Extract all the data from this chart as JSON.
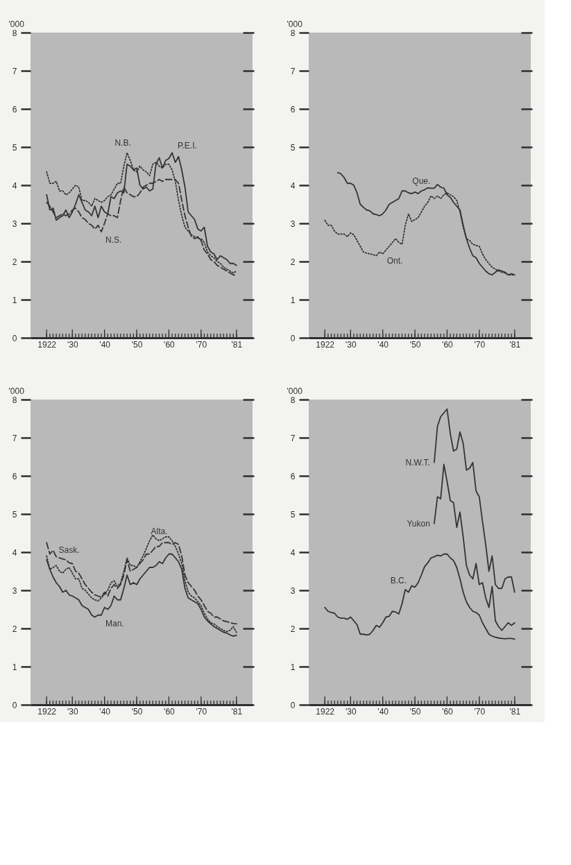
{
  "chart_data": [
    {
      "type": "line",
      "ylabel": "'000",
      "xlim": [
        1917,
        1986
      ],
      "ylim": [
        0,
        8
      ],
      "yticks": [
        0,
        1,
        2,
        3,
        4,
        5,
        6,
        7,
        8
      ],
      "xticks": [
        {
          "value": 1922,
          "label": "1922"
        },
        {
          "value": 1923,
          "label": null
        },
        {
          "value": 1924,
          "label": null
        },
        {
          "value": 1925,
          "label": null
        },
        {
          "value": 1926,
          "label": null
        },
        {
          "value": 1927,
          "label": null
        },
        {
          "value": 1928,
          "label": null
        },
        {
          "value": 1929,
          "label": null
        },
        {
          "value": 1930,
          "label": "'30"
        },
        {
          "value": 1931,
          "label": null
        },
        {
          "value": 1932,
          "label": null
        },
        {
          "value": 1933,
          "label": null
        },
        {
          "value": 1934,
          "label": null
        },
        {
          "value": 1935,
          "label": null
        },
        {
          "value": 1936,
          "label": null
        },
        {
          "value": 1937,
          "label": null
        },
        {
          "value": 1938,
          "label": null
        },
        {
          "value": 1939,
          "label": null
        },
        {
          "value": 1940,
          "label": "'40"
        },
        {
          "value": 1941,
          "label": null
        },
        {
          "value": 1942,
          "label": null
        },
        {
          "value": 1943,
          "label": null
        },
        {
          "value": 1944,
          "label": null
        },
        {
          "value": 1945,
          "label": null
        },
        {
          "value": 1946,
          "label": null
        },
        {
          "value": 1947,
          "label": null
        },
        {
          "value": 1948,
          "label": null
        },
        {
          "value": 1949,
          "label": null
        },
        {
          "value": 1950,
          "label": "'50"
        },
        {
          "value": 1951,
          "label": null
        },
        {
          "value": 1952,
          "label": null
        },
        {
          "value": 1953,
          "label": null
        },
        {
          "value": 1954,
          "label": null
        },
        {
          "value": 1955,
          "label": null
        },
        {
          "value": 1956,
          "label": null
        },
        {
          "value": 1957,
          "label": null
        },
        {
          "value": 1958,
          "label": null
        },
        {
          "value": 1959,
          "label": null
        },
        {
          "value": 1960,
          "label": "'60"
        },
        {
          "value": 1961,
          "label": null
        },
        {
          "value": 1962,
          "label": null
        },
        {
          "value": 1963,
          "label": null
        },
        {
          "value": 1964,
          "label": null
        },
        {
          "value": 1965,
          "label": null
        },
        {
          "value": 1966,
          "label": null
        },
        {
          "value": 1967,
          "label": null
        },
        {
          "value": 1968,
          "label": null
        },
        {
          "value": 1969,
          "label": null
        },
        {
          "value": 1970,
          "label": "'70"
        },
        {
          "value": 1971,
          "label": null
        },
        {
          "value": 1972,
          "label": null
        },
        {
          "value": 1973,
          "label": null
        },
        {
          "value": 1974,
          "label": null
        },
        {
          "value": 1975,
          "label": null
        },
        {
          "value": 1976,
          "label": null
        },
        {
          "value": 1977,
          "label": null
        },
        {
          "value": 1978,
          "label": null
        },
        {
          "value": 1979,
          "label": null
        },
        {
          "value": 1980,
          "label": null
        },
        {
          "value": 1981,
          "label": "'81"
        }
      ],
      "x": [
        1922,
        1923,
        1924,
        1925,
        1926,
        1927,
        1928,
        1929,
        1930,
        1931,
        1932,
        1933,
        1934,
        1935,
        1936,
        1937,
        1938,
        1939,
        1940,
        1941,
        1942,
        1943,
        1944,
        1945,
        1946,
        1947,
        1948,
        1949,
        1950,
        1951,
        1952,
        1953,
        1954,
        1955,
        1956,
        1957,
        1958,
        1959,
        1960,
        1961,
        1962,
        1963,
        1964,
        1965,
        1966,
        1967,
        1968,
        1969,
        1970,
        1971,
        1972,
        1973,
        1974,
        1975,
        1976,
        1977,
        1978,
        1979,
        1980,
        1981
      ],
      "series": [
        {
          "name": "P.E.I.",
          "color": "#333333",
          "line_style": "solid",
          "values": [
            3.75,
            3.35,
            3.4,
            3.08,
            3.15,
            3.2,
            3.35,
            3.15,
            3.3,
            3.5,
            3.75,
            3.55,
            3.35,
            3.3,
            3.2,
            3.45,
            3.15,
            3.45,
            3.3,
            3.25,
            3.7,
            3.65,
            3.8,
            3.85,
            3.8,
            4.55,
            4.5,
            4.4,
            4.45,
            4.0,
            3.9,
            3.95,
            3.85,
            3.9,
            4.55,
            4.72,
            4.45,
            4.65,
            4.7,
            4.85,
            4.6,
            4.75,
            4.4,
            3.95,
            3.3,
            3.2,
            3.1,
            2.85,
            2.8,
            2.9,
            2.4,
            2.25,
            2.2,
            2.05,
            2.15,
            2.1,
            2.05,
            1.95,
            1.95,
            1.9
          ]
        },
        {
          "name": "N.B.",
          "color": "#333333",
          "line_style": "dotted",
          "values": [
            4.35,
            4.05,
            4.05,
            4.1,
            3.85,
            3.85,
            3.75,
            3.8,
            3.9,
            4.0,
            3.95,
            3.6,
            3.6,
            3.55,
            3.45,
            3.65,
            3.6,
            3.55,
            3.6,
            3.7,
            3.75,
            3.9,
            4.05,
            4.05,
            4.5,
            4.85,
            4.65,
            4.4,
            4.35,
            4.5,
            4.4,
            4.35,
            4.25,
            4.55,
            4.6,
            4.5,
            4.45,
            4.55,
            4.55,
            4.4,
            4.1,
            3.6,
            3.2,
            2.9,
            2.8,
            2.7,
            2.65,
            2.6,
            2.6,
            2.5,
            2.25,
            2.15,
            2.1,
            2.0,
            1.95,
            1.85,
            1.8,
            1.75,
            1.7,
            1.75
          ]
        },
        {
          "name": "N.S.",
          "color": "#333333",
          "line_style": "dashed",
          "values": [
            3.55,
            3.45,
            3.3,
            3.15,
            3.2,
            3.25,
            3.2,
            3.25,
            3.35,
            3.4,
            3.3,
            3.15,
            3.1,
            3.0,
            2.95,
            2.85,
            2.95,
            2.78,
            3.0,
            3.25,
            3.2,
            3.2,
            3.15,
            3.6,
            3.95,
            3.8,
            3.75,
            3.7,
            3.7,
            3.8,
            3.95,
            4.0,
            4.05,
            4.05,
            4.1,
            4.15,
            4.1,
            4.15,
            4.15,
            4.15,
            4.15,
            4.05,
            3.6,
            3.2,
            2.9,
            2.65,
            2.6,
            2.65,
            2.55,
            2.3,
            2.2,
            2.05,
            2.0,
            1.9,
            1.85,
            1.8,
            1.75,
            1.7,
            1.65,
            1.65
          ]
        }
      ]
    },
    {
      "type": "line",
      "ylabel": "'000",
      "xlim": [
        1917,
        1986
      ],
      "ylim": [
        0,
        8
      ],
      "yticks": [
        0,
        1,
        2,
        3,
        4,
        5,
        6,
        7,
        8
      ],
      "xticks": [
        {
          "value": 1922,
          "label": "1922"
        },
        {
          "value": 1923,
          "label": null
        },
        {
          "value": 1924,
          "label": null
        },
        {
          "value": 1925,
          "label": null
        },
        {
          "value": 1926,
          "label": null
        },
        {
          "value": 1927,
          "label": null
        },
        {
          "value": 1928,
          "label": null
        },
        {
          "value": 1929,
          "label": null
        },
        {
          "value": 1930,
          "label": "'30"
        },
        {
          "value": 1931,
          "label": null
        },
        {
          "value": 1932,
          "label": null
        },
        {
          "value": 1933,
          "label": null
        },
        {
          "value": 1934,
          "label": null
        },
        {
          "value": 1935,
          "label": null
        },
        {
          "value": 1936,
          "label": null
        },
        {
          "value": 1937,
          "label": null
        },
        {
          "value": 1938,
          "label": null
        },
        {
          "value": 1939,
          "label": null
        },
        {
          "value": 1940,
          "label": "'40"
        },
        {
          "value": 1941,
          "label": null
        },
        {
          "value": 1942,
          "label": null
        },
        {
          "value": 1943,
          "label": null
        },
        {
          "value": 1944,
          "label": null
        },
        {
          "value": 1945,
          "label": null
        },
        {
          "value": 1946,
          "label": null
        },
        {
          "value": 1947,
          "label": null
        },
        {
          "value": 1948,
          "label": null
        },
        {
          "value": 1949,
          "label": null
        },
        {
          "value": 1950,
          "label": "'50"
        },
        {
          "value": 1951,
          "label": null
        },
        {
          "value": 1952,
          "label": null
        },
        {
          "value": 1953,
          "label": null
        },
        {
          "value": 1954,
          "label": null
        },
        {
          "value": 1955,
          "label": null
        },
        {
          "value": 1956,
          "label": null
        },
        {
          "value": 1957,
          "label": null
        },
        {
          "value": 1958,
          "label": null
        },
        {
          "value": 1959,
          "label": null
        },
        {
          "value": 1960,
          "label": "'60"
        },
        {
          "value": 1961,
          "label": null
        },
        {
          "value": 1962,
          "label": null
        },
        {
          "value": 1963,
          "label": null
        },
        {
          "value": 1964,
          "label": null
        },
        {
          "value": 1965,
          "label": null
        },
        {
          "value": 1966,
          "label": null
        },
        {
          "value": 1967,
          "label": null
        },
        {
          "value": 1968,
          "label": null
        },
        {
          "value": 1969,
          "label": null
        },
        {
          "value": 1970,
          "label": "'70"
        },
        {
          "value": 1971,
          "label": null
        },
        {
          "value": 1972,
          "label": null
        },
        {
          "value": 1973,
          "label": null
        },
        {
          "value": 1974,
          "label": null
        },
        {
          "value": 1975,
          "label": null
        },
        {
          "value": 1976,
          "label": null
        },
        {
          "value": 1977,
          "label": null
        },
        {
          "value": 1978,
          "label": null
        },
        {
          "value": 1979,
          "label": null
        },
        {
          "value": 1980,
          "label": null
        },
        {
          "value": 1981,
          "label": "'81"
        }
      ],
      "x": [
        1922,
        1923,
        1924,
        1925,
        1926,
        1927,
        1928,
        1929,
        1930,
        1931,
        1932,
        1933,
        1934,
        1935,
        1936,
        1937,
        1938,
        1939,
        1940,
        1941,
        1942,
        1943,
        1944,
        1945,
        1946,
        1947,
        1948,
        1949,
        1950,
        1951,
        1952,
        1953,
        1954,
        1955,
        1956,
        1957,
        1958,
        1959,
        1960,
        1961,
        1962,
        1963,
        1964,
        1965,
        1966,
        1967,
        1968,
        1969,
        1970,
        1971,
        1972,
        1973,
        1974,
        1975,
        1976,
        1977,
        1978,
        1979,
        1980,
        1981
      ],
      "series": [
        {
          "name": "Que.",
          "color": "#333333",
          "line_style": "solid",
          "x": [
            1926,
            1927,
            1928,
            1929,
            1930,
            1931,
            1932,
            1933,
            1934,
            1935,
            1936,
            1937,
            1938,
            1939,
            1940,
            1941,
            1942,
            1943,
            1944,
            1945,
            1946,
            1947,
            1948,
            1949,
            1950,
            1951,
            1952,
            1953,
            1954,
            1955,
            1956,
            1957,
            1958,
            1959,
            1960,
            1961,
            1962,
            1963,
            1964,
            1965,
            1966,
            1967,
            1968,
            1969,
            1970,
            1971,
            1972,
            1973,
            1974,
            1975,
            1976,
            1977,
            1978,
            1979,
            1980,
            1981
          ],
          "values": [
            4.33,
            4.3,
            4.2,
            4.05,
            4.05,
            4.0,
            3.8,
            3.5,
            3.42,
            3.35,
            3.33,
            3.25,
            3.23,
            3.2,
            3.25,
            3.35,
            3.5,
            3.55,
            3.6,
            3.65,
            3.85,
            3.85,
            3.8,
            3.78,
            3.82,
            3.78,
            3.85,
            3.88,
            3.93,
            3.92,
            3.92,
            4.02,
            3.95,
            3.92,
            3.75,
            3.68,
            3.55,
            3.45,
            3.35,
            2.95,
            2.6,
            2.35,
            2.15,
            2.1,
            1.95,
            1.85,
            1.75,
            1.68,
            1.65,
            1.72,
            1.78,
            1.75,
            1.72,
            1.65,
            1.68,
            1.65
          ]
        },
        {
          "name": "Ont.",
          "color": "#333333",
          "line_style": "dotted",
          "values": [
            3.08,
            2.95,
            2.95,
            2.8,
            2.72,
            2.72,
            2.72,
            2.65,
            2.75,
            2.7,
            2.55,
            2.4,
            2.25,
            2.22,
            2.2,
            2.18,
            2.15,
            2.25,
            2.2,
            2.3,
            2.4,
            2.5,
            2.6,
            2.5,
            2.45,
            2.95,
            3.25,
            3.05,
            3.1,
            3.15,
            3.3,
            3.45,
            3.55,
            3.72,
            3.65,
            3.72,
            3.65,
            3.75,
            3.8,
            3.75,
            3.7,
            3.6,
            3.3,
            2.9,
            2.6,
            2.55,
            2.45,
            2.42,
            2.4,
            2.2,
            2.05,
            1.95,
            1.85,
            1.8,
            1.75,
            1.72,
            1.7,
            1.65,
            1.65,
            1.65
          ]
        }
      ]
    },
    {
      "type": "line",
      "ylabel": "'000",
      "xlim": [
        1917,
        1986
      ],
      "ylim": [
        0,
        8
      ],
      "yticks": [
        0,
        1,
        2,
        3,
        4,
        5,
        6,
        7,
        8
      ],
      "xticks": [
        {
          "value": 1922,
          "label": "1922"
        },
        {
          "value": 1923,
          "label": null
        },
        {
          "value": 1924,
          "label": null
        },
        {
          "value": 1925,
          "label": null
        },
        {
          "value": 1926,
          "label": null
        },
        {
          "value": 1927,
          "label": null
        },
        {
          "value": 1928,
          "label": null
        },
        {
          "value": 1929,
          "label": null
        },
        {
          "value": 1930,
          "label": "'30"
        },
        {
          "value": 1931,
          "label": null
        },
        {
          "value": 1932,
          "label": null
        },
        {
          "value": 1933,
          "label": null
        },
        {
          "value": 1934,
          "label": null
        },
        {
          "value": 1935,
          "label": null
        },
        {
          "value": 1936,
          "label": null
        },
        {
          "value": 1937,
          "label": null
        },
        {
          "value": 1938,
          "label": null
        },
        {
          "value": 1939,
          "label": null
        },
        {
          "value": 1940,
          "label": "'40"
        },
        {
          "value": 1941,
          "label": null
        },
        {
          "value": 1942,
          "label": null
        },
        {
          "value": 1943,
          "label": null
        },
        {
          "value": 1944,
          "label": null
        },
        {
          "value": 1945,
          "label": null
        },
        {
          "value": 1946,
          "label": null
        },
        {
          "value": 1947,
          "label": null
        },
        {
          "value": 1948,
          "label": null
        },
        {
          "value": 1949,
          "label": null
        },
        {
          "value": 1950,
          "label": "'50"
        },
        {
          "value": 1951,
          "label": null
        },
        {
          "value": 1952,
          "label": null
        },
        {
          "value": 1953,
          "label": null
        },
        {
          "value": 1954,
          "label": null
        },
        {
          "value": 1955,
          "label": null
        },
        {
          "value": 1956,
          "label": null
        },
        {
          "value": 1957,
          "label": null
        },
        {
          "value": 1958,
          "label": null
        },
        {
          "value": 1959,
          "label": null
        },
        {
          "value": 1960,
          "label": "'60"
        },
        {
          "value": 1961,
          "label": null
        },
        {
          "value": 1962,
          "label": null
        },
        {
          "value": 1963,
          "label": null
        },
        {
          "value": 1964,
          "label": null
        },
        {
          "value": 1965,
          "label": null
        },
        {
          "value": 1966,
          "label": null
        },
        {
          "value": 1967,
          "label": null
        },
        {
          "value": 1968,
          "label": null
        },
        {
          "value": 1969,
          "label": null
        },
        {
          "value": 1970,
          "label": "'70"
        },
        {
          "value": 1971,
          "label": null
        },
        {
          "value": 1972,
          "label": null
        },
        {
          "value": 1973,
          "label": null
        },
        {
          "value": 1974,
          "label": null
        },
        {
          "value": 1975,
          "label": null
        },
        {
          "value": 1976,
          "label": null
        },
        {
          "value": 1977,
          "label": null
        },
        {
          "value": 1978,
          "label": null
        },
        {
          "value": 1979,
          "label": null
        },
        {
          "value": 1980,
          "label": null
        },
        {
          "value": 1981,
          "label": "'81"
        }
      ],
      "x": [
        1922,
        1923,
        1924,
        1925,
        1926,
        1927,
        1928,
        1929,
        1930,
        1931,
        1932,
        1933,
        1934,
        1935,
        1936,
        1937,
        1938,
        1939,
        1940,
        1941,
        1942,
        1943,
        1944,
        1945,
        1946,
        1947,
        1948,
        1949,
        1950,
        1951,
        1952,
        1953,
        1954,
        1955,
        1956,
        1957,
        1958,
        1959,
        1960,
        1961,
        1962,
        1963,
        1964,
        1965,
        1966,
        1967,
        1968,
        1969,
        1970,
        1971,
        1972,
        1973,
        1974,
        1975,
        1976,
        1977,
        1978,
        1979,
        1980,
        1981
      ],
      "series": [
        {
          "name": "Sask.",
          "color": "#333333",
          "line_style": "dashed",
          "values": [
            4.25,
            3.95,
            4.05,
            3.88,
            3.85,
            3.82,
            3.8,
            3.72,
            3.7,
            3.5,
            3.45,
            3.3,
            3.15,
            3.05,
            2.95,
            2.88,
            2.85,
            2.82,
            2.95,
            2.85,
            3.05,
            3.15,
            3.05,
            3.15,
            3.4,
            3.8,
            3.5,
            3.55,
            3.6,
            3.7,
            3.8,
            3.95,
            3.95,
            4.05,
            4.15,
            4.15,
            4.25,
            4.25,
            4.25,
            4.2,
            4.25,
            4.2,
            3.9,
            3.4,
            3.2,
            3.1,
            3.0,
            2.85,
            2.75,
            2.6,
            2.45,
            2.4,
            2.3,
            2.3,
            2.25,
            2.2,
            2.18,
            2.15,
            2.13,
            2.12
          ]
        },
        {
          "name": "Alta.",
          "color": "#333333",
          "line_style": "dotted",
          "values": [
            3.9,
            3.55,
            3.6,
            3.65,
            3.5,
            3.45,
            3.55,
            3.6,
            3.45,
            3.3,
            3.3,
            3.05,
            3.0,
            2.9,
            2.8,
            2.75,
            2.72,
            2.8,
            2.9,
            3.0,
            3.2,
            3.25,
            3.1,
            3.2,
            3.5,
            3.85,
            3.65,
            3.65,
            3.6,
            3.75,
            3.9,
            4.1,
            4.3,
            4.45,
            4.35,
            4.3,
            4.35,
            4.4,
            4.4,
            4.3,
            4.15,
            3.95,
            3.7,
            3.25,
            2.95,
            2.85,
            2.8,
            2.7,
            2.6,
            2.4,
            2.25,
            2.15,
            2.12,
            2.05,
            2.0,
            1.95,
            1.92,
            1.95,
            2.05,
            1.9
          ]
        },
        {
          "name": "Man.",
          "color": "#333333",
          "line_style": "solid",
          "values": [
            3.8,
            3.55,
            3.35,
            3.2,
            3.1,
            2.95,
            3.0,
            2.88,
            2.85,
            2.8,
            2.75,
            2.6,
            2.55,
            2.5,
            2.35,
            2.3,
            2.35,
            2.35,
            2.55,
            2.5,
            2.6,
            2.85,
            2.75,
            2.75,
            3.05,
            3.4,
            3.15,
            3.2,
            3.15,
            3.3,
            3.4,
            3.5,
            3.6,
            3.6,
            3.65,
            3.75,
            3.7,
            3.85,
            3.95,
            3.95,
            3.85,
            3.75,
            3.55,
            3.05,
            2.8,
            2.75,
            2.7,
            2.65,
            2.5,
            2.3,
            2.2,
            2.12,
            2.05,
            2.0,
            1.95,
            1.9,
            1.88,
            1.83,
            1.8,
            1.82
          ]
        }
      ]
    },
    {
      "type": "line",
      "ylabel": "'000",
      "xlim": [
        1917,
        1986
      ],
      "ylim": [
        0,
        8
      ],
      "yticks": [
        0,
        1,
        2,
        3,
        4,
        5,
        6,
        7,
        8
      ],
      "xticks": [
        {
          "value": 1922,
          "label": "1922"
        },
        {
          "value": 1923,
          "label": null
        },
        {
          "value": 1924,
          "label": null
        },
        {
          "value": 1925,
          "label": null
        },
        {
          "value": 1926,
          "label": null
        },
        {
          "value": 1927,
          "label": null
        },
        {
          "value": 1928,
          "label": null
        },
        {
          "value": 1929,
          "label": null
        },
        {
          "value": 1930,
          "label": "'30"
        },
        {
          "value": 1931,
          "label": null
        },
        {
          "value": 1932,
          "label": null
        },
        {
          "value": 1933,
          "label": null
        },
        {
          "value": 1934,
          "label": null
        },
        {
          "value": 1935,
          "label": null
        },
        {
          "value": 1936,
          "label": null
        },
        {
          "value": 1937,
          "label": null
        },
        {
          "value": 1938,
          "label": null
        },
        {
          "value": 1939,
          "label": null
        },
        {
          "value": 1940,
          "label": "'40"
        },
        {
          "value": 1941,
          "label": null
        },
        {
          "value": 1942,
          "label": null
        },
        {
          "value": 1943,
          "label": null
        },
        {
          "value": 1944,
          "label": null
        },
        {
          "value": 1945,
          "label": null
        },
        {
          "value": 1946,
          "label": null
        },
        {
          "value": 1947,
          "label": null
        },
        {
          "value": 1948,
          "label": null
        },
        {
          "value": 1949,
          "label": null
        },
        {
          "value": 1950,
          "label": "'50"
        },
        {
          "value": 1951,
          "label": null
        },
        {
          "value": 1952,
          "label": null
        },
        {
          "value": 1953,
          "label": null
        },
        {
          "value": 1954,
          "label": null
        },
        {
          "value": 1955,
          "label": null
        },
        {
          "value": 1956,
          "label": null
        },
        {
          "value": 1957,
          "label": null
        },
        {
          "value": 1958,
          "label": null
        },
        {
          "value": 1959,
          "label": null
        },
        {
          "value": 1960,
          "label": "'60"
        },
        {
          "value": 1961,
          "label": null
        },
        {
          "value": 1962,
          "label": null
        },
        {
          "value": 1963,
          "label": null
        },
        {
          "value": 1964,
          "label": null
        },
        {
          "value": 1965,
          "label": null
        },
        {
          "value": 1966,
          "label": null
        },
        {
          "value": 1967,
          "label": null
        },
        {
          "value": 1968,
          "label": null
        },
        {
          "value": 1969,
          "label": null
        },
        {
          "value": 1970,
          "label": "'70"
        },
        {
          "value": 1971,
          "label": null
        },
        {
          "value": 1972,
          "label": null
        },
        {
          "value": 1973,
          "label": null
        },
        {
          "value": 1974,
          "label": null
        },
        {
          "value": 1975,
          "label": null
        },
        {
          "value": 1976,
          "label": null
        },
        {
          "value": 1977,
          "label": null
        },
        {
          "value": 1978,
          "label": null
        },
        {
          "value": 1979,
          "label": null
        },
        {
          "value": 1980,
          "label": null
        },
        {
          "value": 1981,
          "label": "'81"
        }
      ],
      "x": [
        1922,
        1923,
        1924,
        1925,
        1926,
        1927,
        1928,
        1929,
        1930,
        1931,
        1932,
        1933,
        1934,
        1935,
        1936,
        1937,
        1938,
        1939,
        1940,
        1941,
        1942,
        1943,
        1944,
        1945,
        1946,
        1947,
        1948,
        1949,
        1950,
        1951,
        1952,
        1953,
        1954,
        1955,
        1956,
        1957,
        1958,
        1959,
        1960,
        1961,
        1962,
        1963,
        1964,
        1965,
        1966,
        1967,
        1968,
        1969,
        1970,
        1971,
        1972,
        1973,
        1974,
        1975,
        1976,
        1977,
        1978,
        1979,
        1980,
        1981
      ],
      "series": [
        {
          "name": "N.W.T.",
          "color": "#333333",
          "line_style": "solid",
          "x": [
            1956,
            1957,
            1958,
            1959,
            1960,
            1961,
            1962,
            1963,
            1964,
            1965,
            1966,
            1967,
            1968,
            1969,
            1970,
            1971,
            1972,
            1973,
            1974,
            1975,
            1976,
            1977,
            1978,
            1979,
            1980,
            1981
          ],
          "values": [
            6.35,
            7.3,
            7.55,
            7.65,
            7.75,
            7.1,
            6.65,
            6.7,
            7.15,
            6.85,
            6.15,
            6.2,
            6.35,
            5.6,
            5.45,
            4.8,
            4.2,
            3.5,
            3.9,
            3.15,
            3.05,
            3.05,
            3.3,
            3.35,
            3.35,
            2.95
          ]
        },
        {
          "name": "Yukon",
          "color": "#333333",
          "line_style": "solid",
          "x": [
            1956,
            1957,
            1958,
            1959,
            1960,
            1961,
            1962,
            1963,
            1964,
            1965,
            1966,
            1967,
            1968,
            1969,
            1970,
            1971,
            1972,
            1973,
            1974,
            1975,
            1976,
            1977,
            1978,
            1979,
            1980,
            1981
          ],
          "values": [
            4.75,
            5.45,
            5.4,
            6.3,
            5.85,
            5.35,
            5.3,
            4.65,
            5.05,
            4.4,
            3.65,
            3.4,
            3.3,
            3.7,
            3.15,
            3.2,
            2.8,
            2.55,
            3.1,
            2.2,
            2.05,
            1.95,
            2.05,
            2.15,
            2.08,
            2.15
          ]
        },
        {
          "name": "B.C.",
          "color": "#333333",
          "line_style": "solid",
          "values": [
            2.55,
            2.45,
            2.42,
            2.4,
            2.3,
            2.27,
            2.27,
            2.24,
            2.3,
            2.2,
            2.1,
            1.85,
            1.85,
            1.83,
            1.85,
            1.95,
            2.08,
            2.03,
            2.15,
            2.3,
            2.32,
            2.45,
            2.43,
            2.38,
            2.65,
            3.02,
            2.95,
            3.12,
            3.08,
            3.2,
            3.4,
            3.62,
            3.72,
            3.85,
            3.88,
            3.92,
            3.9,
            3.95,
            3.95,
            3.85,
            3.78,
            3.6,
            3.3,
            2.95,
            2.7,
            2.55,
            2.45,
            2.42,
            2.35,
            2.15,
            2.0,
            1.85,
            1.8,
            1.77,
            1.75,
            1.74,
            1.73,
            1.74,
            1.74,
            1.72
          ]
        }
      ]
    }
  ]
}
